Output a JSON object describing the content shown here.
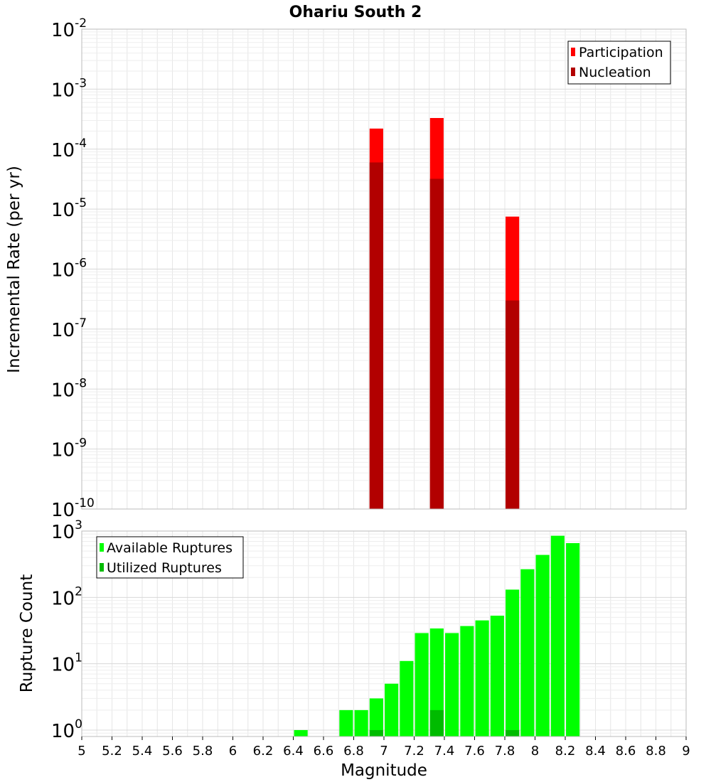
{
  "title": "Ohariu South 2",
  "colors": {
    "participation": "#ff0000",
    "nucleation": "#b20000",
    "available": "#00ff00",
    "utilized": "#00bb00",
    "grid": "#e6e6e6",
    "frame": "#bbbbbb"
  },
  "chart_data": [
    {
      "type": "bar",
      "title": "Ohariu South 2",
      "ylabel": "Incremental Rate (per yr)",
      "xlabel": "",
      "xlim": [
        5,
        9
      ],
      "ylim": [
        1e-10,
        0.01
      ],
      "yscale": "log",
      "grid": true,
      "legend_position": "top-right",
      "x": [
        6.95,
        7.35,
        7.85
      ],
      "series": [
        {
          "name": "Participation",
          "values": [
            0.00022,
            0.00033,
            7.5e-06
          ]
        },
        {
          "name": "Nucleation",
          "values": [
            6e-05,
            3.2e-05,
            3e-07
          ]
        }
      ]
    },
    {
      "type": "bar",
      "ylabel": "Rupture Count",
      "xlabel": "Magnitude",
      "xlim": [
        5,
        9
      ],
      "ylim": [
        0.8,
        1000
      ],
      "yscale": "log",
      "grid": true,
      "legend_position": "top-left",
      "x": [
        6.45,
        6.75,
        6.85,
        6.95,
        7.05,
        7.15,
        7.25,
        7.35,
        7.45,
        7.55,
        7.65,
        7.75,
        7.85,
        7.95,
        8.05,
        8.15,
        8.25
      ],
      "series": [
        {
          "name": "Available Ruptures",
          "values": [
            1,
            2,
            2,
            3,
            5,
            11,
            29,
            34,
            29,
            37,
            45,
            53,
            131,
            266,
            437,
            850,
            658
          ]
        },
        {
          "name": "Utilized Ruptures",
          "values": [
            0,
            0,
            0,
            1,
            0,
            0,
            0,
            2,
            0,
            0,
            0,
            0,
            1,
            0,
            0,
            0,
            0
          ]
        }
      ]
    }
  ],
  "x_tick_labels": [
    "5",
    "5.2",
    "5.4",
    "5.6",
    "5.8",
    "6",
    "6.2",
    "6.4",
    "6.6",
    "6.8",
    "7",
    "7.2",
    "7.4",
    "7.6",
    "7.8",
    "8",
    "8.2",
    "8.4",
    "8.6",
    "8.8",
    "9"
  ],
  "top_y_ticks": [
    {
      "base": "10",
      "exp": "-10"
    },
    {
      "base": "10",
      "exp": "-9"
    },
    {
      "base": "10",
      "exp": "-8"
    },
    {
      "base": "10",
      "exp": "-7"
    },
    {
      "base": "10",
      "exp": "-6"
    },
    {
      "base": "10",
      "exp": "-5"
    },
    {
      "base": "10",
      "exp": "-4"
    },
    {
      "base": "10",
      "exp": "-3"
    },
    {
      "base": "10",
      "exp": "-2"
    }
  ],
  "bottom_y_ticks": [
    {
      "base": "10",
      "exp": "0"
    },
    {
      "base": "10",
      "exp": "1"
    },
    {
      "base": "10",
      "exp": "2"
    },
    {
      "base": "10",
      "exp": "3"
    }
  ]
}
